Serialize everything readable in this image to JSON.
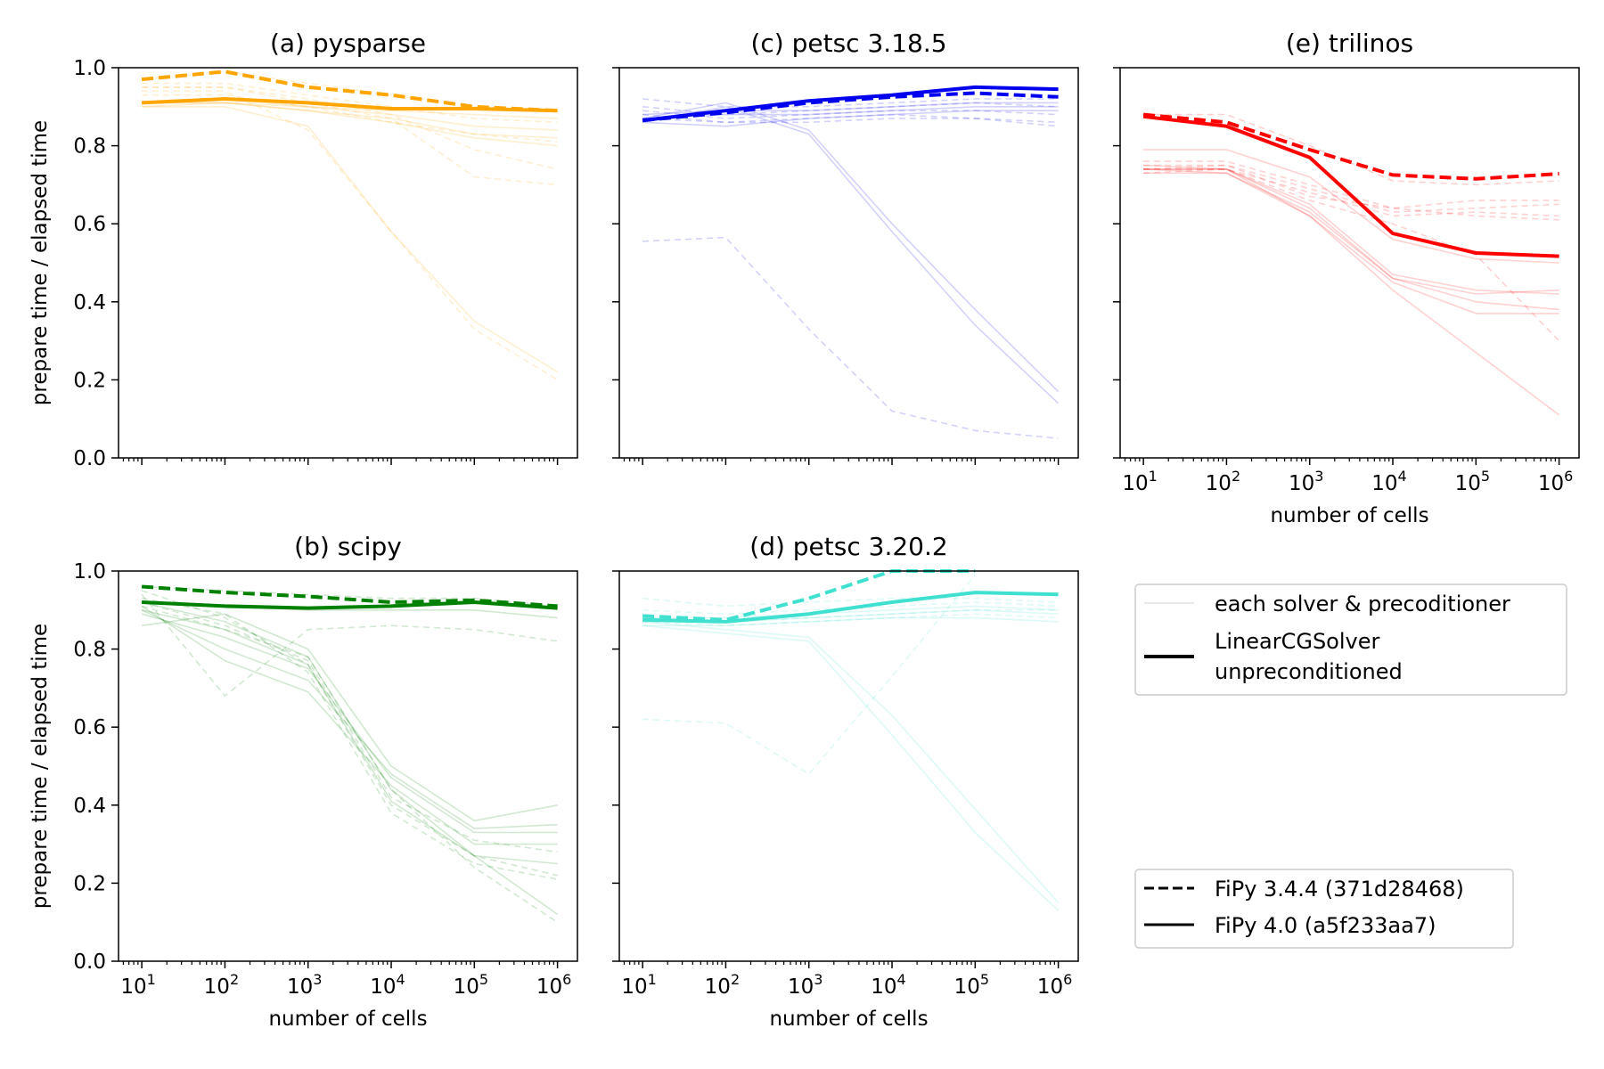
{
  "axis_labels": {
    "y": "prepare time / elapsed time",
    "x": "number of cells"
  },
  "yticks": [
    "0.0",
    "0.2",
    "0.4",
    "0.6",
    "0.8",
    "1.0"
  ],
  "xticks": [
    {
      "base": "10",
      "exp": "1"
    },
    {
      "base": "10",
      "exp": "2"
    },
    {
      "base": "10",
      "exp": "3"
    },
    {
      "base": "10",
      "exp": "4"
    },
    {
      "base": "10",
      "exp": "5"
    },
    {
      "base": "10",
      "exp": "6"
    }
  ],
  "legend1": {
    "items": [
      {
        "label": "each solver & precoditioner"
      },
      {
        "label": "LinearCGSolver"
      },
      {
        "label": "unpreconditioned"
      }
    ]
  },
  "legend2": {
    "items": [
      {
        "label": "FiPy 3.4.4 (371d28468)"
      },
      {
        "label": "FiPy 4.0 (a5f233aa7)"
      }
    ]
  },
  "chart_data": [
    {
      "id": "a",
      "type": "line",
      "title": "(a) pysparse",
      "color": "#ffa500",
      "x": [
        10,
        100,
        1000,
        10000,
        100000,
        1000000
      ],
      "xscale": "log",
      "ylim": [
        0,
        1
      ],
      "show_xticklabels": false,
      "show_yticklabels": true,
      "series": [
        {
          "values": [
            0.97,
            0.99,
            0.95,
            0.93,
            0.9,
            0.89
          ],
          "style": "dashed",
          "weight": "bold"
        },
        {
          "values": [
            0.91,
            0.92,
            0.91,
            0.895,
            0.895,
            0.89
          ],
          "style": "solid",
          "weight": "bold"
        },
        {
          "values": [
            0.97,
            0.99,
            0.96,
            0.93,
            0.9,
            0.89
          ],
          "style": "dashed",
          "weight": "light"
        },
        {
          "values": [
            0.96,
            0.96,
            0.93,
            0.9,
            0.87,
            0.86
          ],
          "style": "dashed",
          "weight": "light"
        },
        {
          "values": [
            0.95,
            0.95,
            0.92,
            0.88,
            0.79,
            0.74
          ],
          "style": "dashed",
          "weight": "light"
        },
        {
          "values": [
            0.95,
            0.95,
            0.91,
            0.87,
            0.72,
            0.7
          ],
          "style": "dashed",
          "weight": "light"
        },
        {
          "values": [
            0.94,
            0.94,
            0.84,
            0.58,
            0.33,
            0.2
          ],
          "style": "dashed",
          "weight": "light"
        },
        {
          "values": [
            0.93,
            0.93,
            0.9,
            0.86,
            0.83,
            0.81
          ],
          "style": "dashed",
          "weight": "light"
        },
        {
          "values": [
            0.91,
            0.92,
            0.9,
            0.89,
            0.88,
            0.87
          ],
          "style": "solid",
          "weight": "light"
        },
        {
          "values": [
            0.91,
            0.91,
            0.9,
            0.88,
            0.85,
            0.84
          ],
          "style": "solid",
          "weight": "light"
        },
        {
          "values": [
            0.91,
            0.91,
            0.89,
            0.87,
            0.83,
            0.82
          ],
          "style": "solid",
          "weight": "light"
        },
        {
          "values": [
            0.9,
            0.91,
            0.89,
            0.86,
            0.82,
            0.8
          ],
          "style": "solid",
          "weight": "light"
        },
        {
          "values": [
            0.9,
            0.9,
            0.85,
            0.58,
            0.35,
            0.22
          ],
          "style": "solid",
          "weight": "light"
        }
      ]
    },
    {
      "id": "c",
      "type": "line",
      "title": "(c) petsc 3.18.5",
      "color": "#0000ee",
      "x": [
        10,
        100,
        1000,
        10000,
        100000,
        1000000
      ],
      "xscale": "log",
      "ylim": [
        0,
        1
      ],
      "show_xticklabels": false,
      "show_yticklabels": false,
      "series": [
        {
          "values": [
            0.865,
            0.885,
            0.91,
            0.925,
            0.935,
            0.925
          ],
          "style": "dashed",
          "weight": "bold"
        },
        {
          "values": [
            0.865,
            0.89,
            0.915,
            0.93,
            0.95,
            0.945
          ],
          "style": "solid",
          "weight": "bold"
        },
        {
          "values": [
            0.92,
            0.9,
            0.9,
            0.91,
            0.92,
            0.92
          ],
          "style": "dashed",
          "weight": "light"
        },
        {
          "values": [
            0.9,
            0.88,
            0.89,
            0.9,
            0.91,
            0.9
          ],
          "style": "dashed",
          "weight": "light"
        },
        {
          "values": [
            0.89,
            0.87,
            0.88,
            0.89,
            0.89,
            0.88
          ],
          "style": "dashed",
          "weight": "light"
        },
        {
          "values": [
            0.88,
            0.86,
            0.87,
            0.88,
            0.87,
            0.86
          ],
          "style": "dashed",
          "weight": "light"
        },
        {
          "values": [
            0.87,
            0.86,
            0.86,
            0.87,
            0.87,
            0.85
          ],
          "style": "dashed",
          "weight": "light"
        },
        {
          "values": [
            0.555,
            0.565,
            0.33,
            0.12,
            0.07,
            0.05
          ],
          "style": "dashed",
          "weight": "light"
        },
        {
          "values": [
            0.88,
            0.89,
            0.89,
            0.9,
            0.91,
            0.91
          ],
          "style": "solid",
          "weight": "light"
        },
        {
          "values": [
            0.87,
            0.88,
            0.88,
            0.89,
            0.9,
            0.9
          ],
          "style": "solid",
          "weight": "light"
        },
        {
          "values": [
            0.86,
            0.85,
            0.87,
            0.88,
            0.89,
            0.89
          ],
          "style": "solid",
          "weight": "light"
        },
        {
          "values": [
            0.87,
            0.91,
            0.84,
            0.6,
            0.38,
            0.17
          ],
          "style": "solid",
          "weight": "light"
        },
        {
          "values": [
            0.86,
            0.9,
            0.83,
            0.58,
            0.34,
            0.14
          ],
          "style": "solid",
          "weight": "light"
        }
      ]
    },
    {
      "id": "e",
      "type": "line",
      "title": "(e) trilinos",
      "color": "#ff0000",
      "x": [
        10,
        100,
        1000,
        10000,
        100000,
        1000000
      ],
      "xscale": "log",
      "ylim": [
        0,
        1
      ],
      "show_xticklabels": true,
      "show_yticklabels": false,
      "series": [
        {
          "values": [
            0.88,
            0.86,
            0.79,
            0.725,
            0.715,
            0.728
          ],
          "style": "dashed",
          "weight": "bold"
        },
        {
          "values": [
            0.875,
            0.85,
            0.77,
            0.575,
            0.525,
            0.517
          ],
          "style": "solid",
          "weight": "bold"
        },
        {
          "values": [
            0.88,
            0.88,
            0.8,
            0.71,
            0.7,
            0.71
          ],
          "style": "dashed",
          "weight": "light"
        },
        {
          "values": [
            0.76,
            0.76,
            0.7,
            0.64,
            0.66,
            0.66
          ],
          "style": "dashed",
          "weight": "light"
        },
        {
          "values": [
            0.75,
            0.75,
            0.69,
            0.63,
            0.64,
            0.65
          ],
          "style": "dashed",
          "weight": "light"
        },
        {
          "values": [
            0.74,
            0.74,
            0.68,
            0.62,
            0.63,
            0.62
          ],
          "style": "dashed",
          "weight": "light"
        },
        {
          "values": [
            0.74,
            0.75,
            0.67,
            0.64,
            0.62,
            0.61
          ],
          "style": "dashed",
          "weight": "light"
        },
        {
          "values": [
            0.73,
            0.74,
            0.66,
            0.6,
            0.52,
            0.3
          ],
          "style": "dashed",
          "weight": "light"
        },
        {
          "values": [
            0.74,
            0.74,
            0.65,
            0.47,
            0.43,
            0.42
          ],
          "style": "solid",
          "weight": "light"
        },
        {
          "values": [
            0.74,
            0.74,
            0.64,
            0.46,
            0.42,
            0.43
          ],
          "style": "solid",
          "weight": "light"
        },
        {
          "values": [
            0.74,
            0.73,
            0.63,
            0.46,
            0.4,
            0.38
          ],
          "style": "solid",
          "weight": "light"
        },
        {
          "values": [
            0.73,
            0.73,
            0.62,
            0.45,
            0.37,
            0.37
          ],
          "style": "solid",
          "weight": "light"
        },
        {
          "values": [
            0.75,
            0.74,
            0.62,
            0.43,
            0.27,
            0.11
          ],
          "style": "solid",
          "weight": "light"
        },
        {
          "values": [
            0.79,
            0.79,
            0.72,
            0.56,
            0.51,
            0.5
          ],
          "style": "solid",
          "weight": "light"
        }
      ]
    },
    {
      "id": "b",
      "type": "line",
      "title": "(b) scipy",
      "color": "#008000",
      "x": [
        10,
        100,
        1000,
        10000,
        100000,
        1000000
      ],
      "xscale": "log",
      "ylim": [
        0,
        1
      ],
      "show_xticklabels": true,
      "show_yticklabels": true,
      "series": [
        {
          "values": [
            0.96,
            0.945,
            0.935,
            0.92,
            0.925,
            0.91
          ],
          "style": "dashed",
          "weight": "bold"
        },
        {
          "values": [
            0.92,
            0.91,
            0.905,
            0.91,
            0.92,
            0.905
          ],
          "style": "solid",
          "weight": "bold"
        },
        {
          "values": [
            0.96,
            0.95,
            0.94,
            0.93,
            0.93,
            0.91
          ],
          "style": "dashed",
          "weight": "light"
        },
        {
          "values": [
            0.95,
            0.88,
            0.76,
            0.4,
            0.27,
            0.22
          ],
          "style": "dashed",
          "weight": "light"
        },
        {
          "values": [
            0.94,
            0.68,
            0.85,
            0.86,
            0.85,
            0.82
          ],
          "style": "dashed",
          "weight": "light"
        },
        {
          "values": [
            0.93,
            0.89,
            0.74,
            0.38,
            0.25,
            0.21
          ],
          "style": "dashed",
          "weight": "light"
        },
        {
          "values": [
            0.92,
            0.86,
            0.77,
            0.42,
            0.31,
            0.28
          ],
          "style": "dashed",
          "weight": "light"
        },
        {
          "values": [
            0.91,
            0.85,
            0.78,
            0.44,
            0.24,
            0.1
          ],
          "style": "dashed",
          "weight": "light"
        },
        {
          "values": [
            0.86,
            0.89,
            0.8,
            0.5,
            0.36,
            0.4
          ],
          "style": "solid",
          "weight": "light"
        },
        {
          "values": [
            0.9,
            0.8,
            0.72,
            0.48,
            0.34,
            0.35
          ],
          "style": "solid",
          "weight": "light"
        },
        {
          "values": [
            0.89,
            0.83,
            0.75,
            0.47,
            0.33,
            0.33
          ],
          "style": "solid",
          "weight": "light"
        },
        {
          "values": [
            0.91,
            0.77,
            0.69,
            0.45,
            0.3,
            0.3
          ],
          "style": "solid",
          "weight": "light"
        },
        {
          "values": [
            0.9,
            0.85,
            0.76,
            0.41,
            0.27,
            0.25
          ],
          "style": "solid",
          "weight": "light"
        },
        {
          "values": [
            0.92,
            0.87,
            0.78,
            0.44,
            0.27,
            0.12
          ],
          "style": "solid",
          "weight": "light"
        },
        {
          "values": [
            0.92,
            0.91,
            0.9,
            0.9,
            0.9,
            0.88
          ],
          "style": "solid",
          "weight": "light"
        }
      ]
    },
    {
      "id": "d",
      "type": "line",
      "title": "(d) petsc 3.20.2",
      "color": "#40e0d0",
      "x": [
        10,
        100,
        1000,
        10000,
        100000,
        1000000
      ],
      "xscale": "log",
      "ylim": [
        0,
        1
      ],
      "show_xticklabels": true,
      "show_yticklabels": false,
      "series": [
        {
          "values": [
            0.885,
            0.875,
            0.93,
            1.0,
            1.0,
            null
          ],
          "style": "dashed",
          "weight": "bold"
        },
        {
          "values": [
            0.875,
            0.87,
            0.89,
            0.92,
            0.945,
            0.94
          ],
          "style": "solid",
          "weight": "bold"
        },
        {
          "values": [
            0.62,
            0.61,
            0.48,
            0.73,
            0.99,
            null
          ],
          "style": "dashed",
          "weight": "light"
        },
        {
          "values": [
            0.93,
            0.91,
            0.92,
            0.93,
            0.93,
            0.92
          ],
          "style": "dashed",
          "weight": "light"
        },
        {
          "values": [
            0.9,
            0.89,
            0.9,
            0.91,
            0.92,
            0.91
          ],
          "style": "dashed",
          "weight": "light"
        },
        {
          "values": [
            0.88,
            0.87,
            0.88,
            0.89,
            0.9,
            0.9
          ],
          "style": "dashed",
          "weight": "light"
        },
        {
          "values": [
            0.87,
            0.86,
            0.87,
            0.88,
            0.89,
            0.88
          ],
          "style": "dashed",
          "weight": "light"
        },
        {
          "values": [
            0.88,
            0.88,
            0.89,
            0.9,
            0.91,
            0.9
          ],
          "style": "solid",
          "weight": "light"
        },
        {
          "values": [
            0.87,
            0.87,
            0.88,
            0.89,
            0.9,
            0.89
          ],
          "style": "solid",
          "weight": "light"
        },
        {
          "values": [
            0.86,
            0.86,
            0.87,
            0.88,
            0.88,
            0.87
          ],
          "style": "solid",
          "weight": "light"
        },
        {
          "values": [
            0.87,
            0.85,
            0.83,
            0.63,
            0.39,
            0.15
          ],
          "style": "solid",
          "weight": "light"
        },
        {
          "values": [
            0.86,
            0.84,
            0.82,
            0.58,
            0.33,
            0.13
          ],
          "style": "solid",
          "weight": "light"
        }
      ]
    }
  ]
}
